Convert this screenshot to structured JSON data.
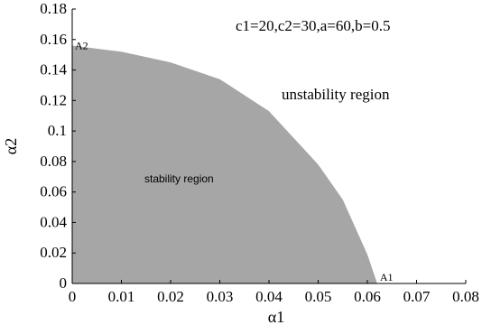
{
  "chart_data": {
    "type": "area",
    "xlabel": "α1",
    "ylabel": "α2",
    "xlim": [
      0,
      0.08
    ],
    "ylim": [
      0,
      0.18
    ],
    "x_ticks": [
      "0",
      "0.01",
      "0.02",
      "0.03",
      "0.04",
      "0.05",
      "0.06",
      "0.07",
      "0.08"
    ],
    "y_ticks": [
      "0",
      "0.02",
      "0.04",
      "0.06",
      "0.08",
      "0.1",
      "0.12",
      "0.14",
      "0.16",
      "0.18"
    ],
    "parameters": "c1=20,c2=30,a=60,b=0.5",
    "regions": {
      "stable": "stability region",
      "unstable": "unstability region"
    },
    "region_fill": "#a6a6a6",
    "boundary": {
      "x": [
        0,
        0.01,
        0.02,
        0.03,
        0.04,
        0.05,
        0.055,
        0.06,
        0.062
      ],
      "y": [
        0.156,
        0.152,
        0.145,
        0.134,
        0.113,
        0.078,
        0.055,
        0.019,
        0
      ]
    },
    "points": [
      {
        "label": "A1",
        "x": 0.062,
        "y": 0
      },
      {
        "label": "A2",
        "x": 0,
        "y": 0.156
      }
    ]
  }
}
